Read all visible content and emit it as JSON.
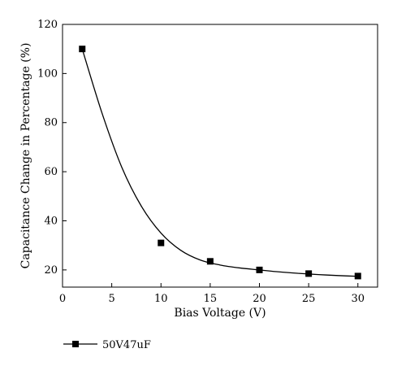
{
  "chart_data": {
    "type": "scatter",
    "xlabel": "Bias Voltage (V)",
    "ylabel": "Capacitance Change in Percentage (%)",
    "xlim": [
      0,
      32
    ],
    "ylim": [
      13,
      120
    ],
    "x_ticks": [
      0,
      5,
      10,
      15,
      20,
      25,
      30
    ],
    "y_ticks": [
      20,
      40,
      60,
      80,
      100,
      120
    ],
    "x_tick_labels": [
      "0",
      "5",
      "10",
      "15",
      "20",
      "25",
      "30"
    ],
    "y_tick_labels": [
      "20",
      "40",
      "60",
      "80",
      "100",
      "120"
    ],
    "grid": false,
    "legend_position": "bottom-left",
    "series": [
      {
        "name": "50V47uF",
        "marker": "square",
        "color": "#000000",
        "x": [
          2,
          10,
          15,
          20,
          25,
          30
        ],
        "y": [
          110,
          31,
          23.5,
          20,
          18.5,
          17.5
        ],
        "fit_curve": {
          "x": [
            2,
            4,
            6,
            8,
            10,
            12,
            14,
            16,
            18,
            20,
            22,
            24,
            26,
            28,
            30
          ],
          "y": [
            110,
            84,
            62,
            46,
            35,
            28,
            24,
            22,
            20.8,
            20,
            19.2,
            18.6,
            18.1,
            17.7,
            17.4
          ]
        }
      }
    ]
  }
}
